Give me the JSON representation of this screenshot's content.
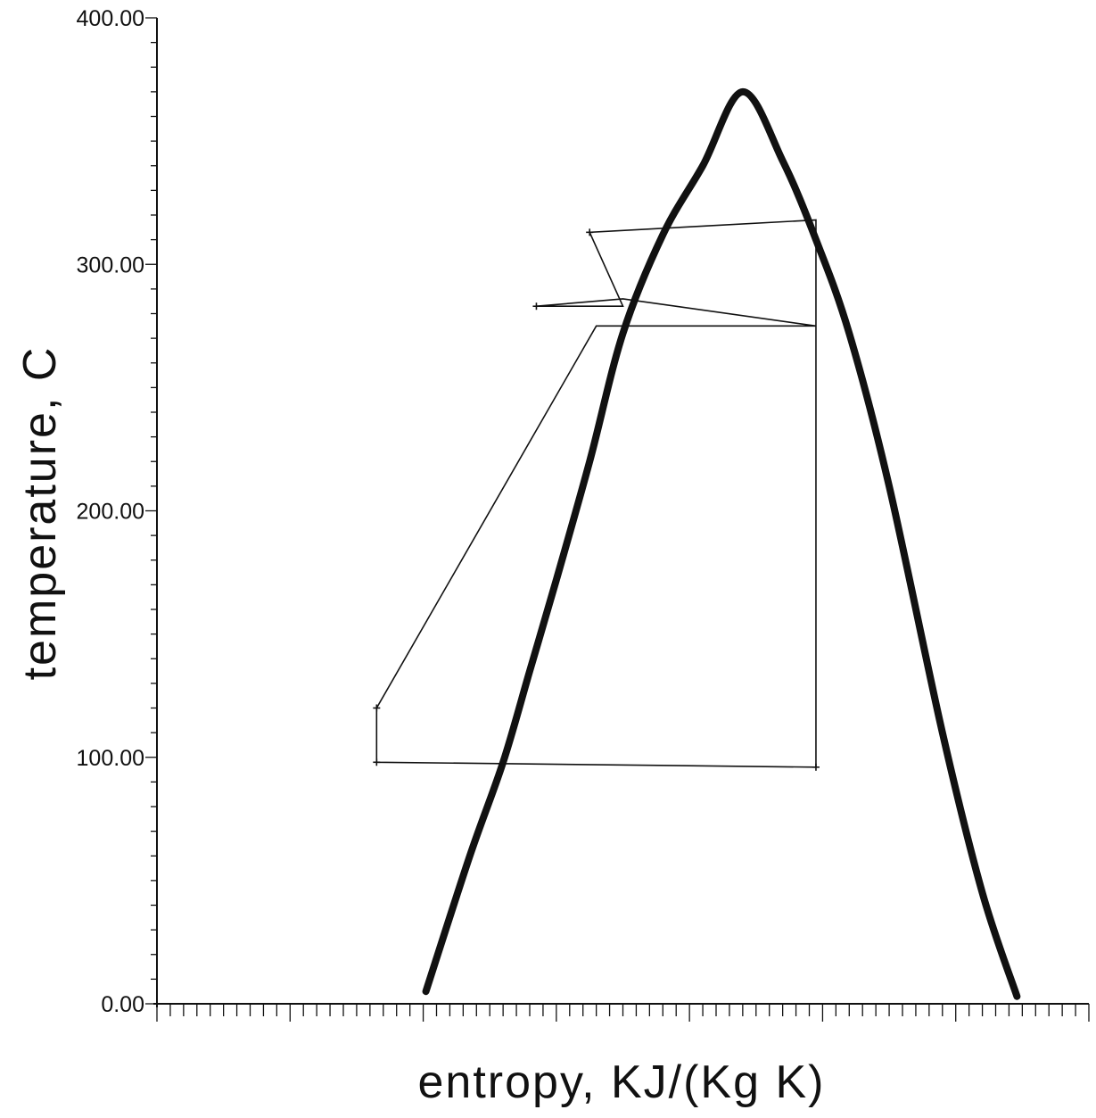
{
  "chart_data": {
    "type": "line",
    "title": "",
    "xlabel": "entropy, KJ/(Kg K)",
    "ylabel": "temperature, C",
    "ylim": [
      0,
      400
    ],
    "yticks": [
      "0.00",
      "100.00",
      "200.00",
      "300.00",
      "400.00"
    ],
    "xlim": [
      0,
      7
    ],
    "xtick_labels": [],
    "grid": false,
    "legend": "none",
    "colors": {
      "line": "#111111",
      "background": "#ffffff"
    },
    "series": [
      {
        "kind": "saturation-dome",
        "x": [
          2.02,
          2.35,
          2.6,
          2.8,
          3.0,
          3.25,
          3.5,
          3.8,
          4.1,
          4.4,
          4.7,
          4.95,
          5.2,
          5.5,
          5.9,
          6.2,
          6.46
        ],
        "y": [
          5,
          60,
          98,
          135,
          172,
          220,
          272,
          312,
          340,
          370,
          342,
          310,
          272,
          210,
          110,
          45,
          3
        ]
      },
      {
        "kind": "cycle",
        "x": [
          1.65,
          1.65,
          3.3,
          4.0,
          4.95,
          3.5,
          2.85,
          3.5,
          3.25,
          4.95,
          4.95,
          1.65
        ],
        "y": [
          98,
          120,
          275,
          275,
          275,
          286,
          283,
          283,
          313,
          318,
          96,
          98
        ]
      }
    ]
  }
}
